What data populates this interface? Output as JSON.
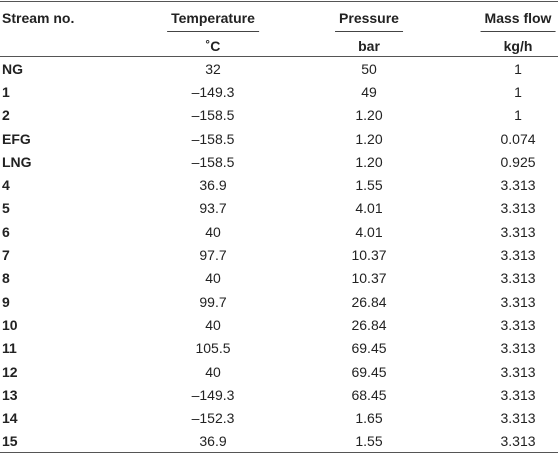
{
  "table": {
    "header": [
      "Stream no.",
      "Temperature",
      "Pressure",
      "Mass flow"
    ],
    "units": [
      "˚C",
      "bar",
      "kg/h"
    ],
    "rows": [
      [
        "NG",
        "32",
        "50",
        "1"
      ],
      [
        "1",
        "–149.3",
        "49",
        "1"
      ],
      [
        "2",
        "–158.5",
        "1.20",
        "1"
      ],
      [
        "EFG",
        "–158.5",
        "1.20",
        "0.074"
      ],
      [
        "LNG",
        "–158.5",
        "1.20",
        "0.925"
      ],
      [
        "4",
        "36.9",
        "1.55",
        "3.313"
      ],
      [
        "5",
        "93.7",
        "4.01",
        "3.313"
      ],
      [
        "6",
        "40",
        "4.01",
        "3.313"
      ],
      [
        "7",
        "97.7",
        "10.37",
        "3.313"
      ],
      [
        "8",
        "40",
        "10.37",
        "3.313"
      ],
      [
        "9",
        "99.7",
        "26.84",
        "3.313"
      ],
      [
        "10",
        "40",
        "26.84",
        "3.313"
      ],
      [
        "11",
        "105.5",
        "69.45",
        "3.313"
      ],
      [
        "12",
        "40",
        "69.45",
        "3.313"
      ],
      [
        "13",
        "–149.3",
        "68.45",
        "3.313"
      ],
      [
        "14",
        "–152.3",
        "1.65",
        "3.313"
      ],
      [
        "15",
        "36.9",
        "1.55",
        "3.313"
      ]
    ]
  }
}
